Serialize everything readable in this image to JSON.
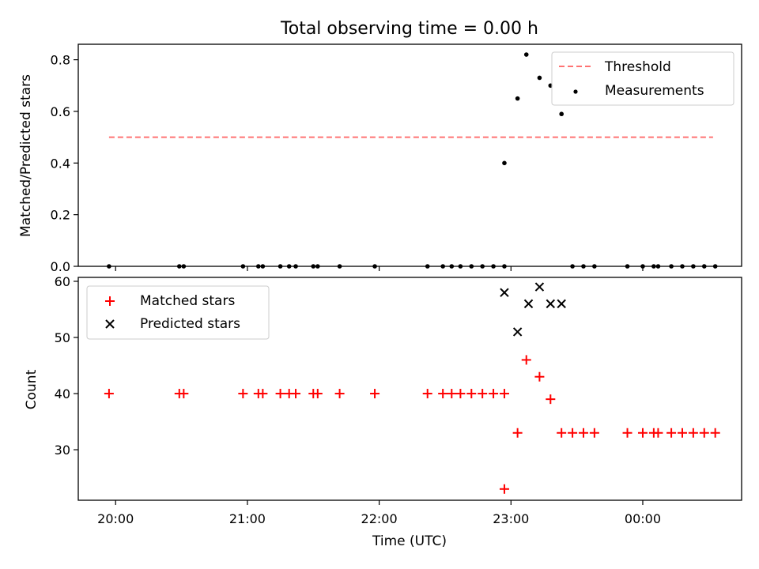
{
  "title": "Total observing time = 0.00 h",
  "colors": {
    "threshold": "#ff7373",
    "measurements": "#000000",
    "matched": "#ff0000",
    "predicted": "#000000"
  },
  "chart_data": [
    {
      "type": "scatter",
      "title": "Total observing time = 0.00 h",
      "xlabel": "",
      "ylabel": "Matched/Predicted stars",
      "xlim": [
        "19:43",
        "00:45"
      ],
      "ylim": [
        0.0,
        0.86
      ],
      "yticks": [
        "0.0",
        "0.2",
        "0.4",
        "0.6",
        "0.8"
      ],
      "ytick_values": [
        0.0,
        0.2,
        0.4,
        0.6,
        0.8
      ],
      "legend_position": "top-right",
      "series": [
        {
          "name": "Threshold",
          "style": "dashed-line",
          "x": [
            "19:57",
            "00:32"
          ],
          "y": [
            0.5,
            0.5
          ]
        },
        {
          "name": "Measurements",
          "style": "dot",
          "x": [
            "19:57",
            "20:29",
            "20:31",
            "20:58",
            "21:05",
            "21:07",
            "21:15",
            "21:19",
            "21:22",
            "21:30",
            "21:32",
            "21:42",
            "21:58",
            "22:22",
            "22:29",
            "22:33",
            "22:37",
            "22:42",
            "22:47",
            "22:52",
            "22:57",
            "22:57",
            "23:03",
            "23:07",
            "23:13",
            "23:18",
            "23:23",
            "23:28",
            "23:33",
            "23:38",
            "23:53",
            "24:00",
            "24:05",
            "24:07",
            "24:13",
            "24:18",
            "24:23",
            "24:28",
            "24:33"
          ],
          "y": [
            0,
            0,
            0,
            0,
            0,
            0,
            0,
            0,
            0,
            0,
            0,
            0,
            0,
            0,
            0,
            0,
            0,
            0,
            0,
            0,
            0,
            0.4,
            0.65,
            0.82,
            0.73,
            0.7,
            0.59,
            0,
            0,
            0,
            0,
            0,
            0,
            0,
            0,
            0,
            0,
            0,
            0
          ]
        }
      ]
    },
    {
      "type": "scatter",
      "xlabel": "Time (UTC)",
      "ylabel": "Count",
      "xlim": [
        "19:43",
        "00:45"
      ],
      "ylim": [
        21,
        60.7
      ],
      "yticks": [
        "30",
        "40",
        "50",
        "60"
      ],
      "ytick_values": [
        30,
        40,
        50,
        60
      ],
      "xticks": [
        "20:00",
        "21:00",
        "22:00",
        "23:00",
        "00:00"
      ],
      "legend_position": "top-left",
      "series": [
        {
          "name": "Matched stars",
          "style": "plus",
          "x": [
            "19:57",
            "20:29",
            "20:31",
            "20:58",
            "21:05",
            "21:07",
            "21:15",
            "21:19",
            "21:22",
            "21:30",
            "21:32",
            "21:42",
            "21:58",
            "22:22",
            "22:29",
            "22:33",
            "22:37",
            "22:42",
            "22:47",
            "22:52",
            "22:57",
            "22:57",
            "23:03",
            "23:07",
            "23:13",
            "23:18",
            "23:23",
            "23:28",
            "23:33",
            "23:38",
            "23:53",
            "24:00",
            "24:05",
            "24:07",
            "24:13",
            "24:18",
            "24:23",
            "24:28",
            "24:33"
          ],
          "y": [
            40,
            40,
            40,
            40,
            40,
            40,
            40,
            40,
            40,
            40,
            40,
            40,
            40,
            40,
            40,
            40,
            40,
            40,
            40,
            40,
            40,
            23,
            33,
            46,
            43,
            39,
            33,
            33,
            33,
            33,
            33,
            33,
            33,
            33,
            33,
            33,
            33,
            33,
            33
          ]
        },
        {
          "name": "Predicted stars",
          "style": "x",
          "x": [
            "22:57",
            "23:03",
            "23:08",
            "23:13",
            "23:18",
            "23:23"
          ],
          "y": [
            58,
            51,
            56,
            59,
            56,
            56
          ]
        }
      ]
    }
  ]
}
